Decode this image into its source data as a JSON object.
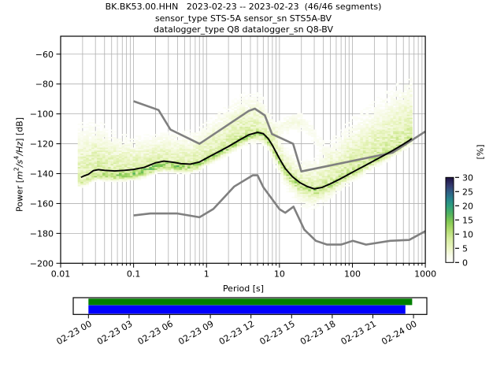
{
  "title": {
    "line1": "BK.BK53.00.HHN   2023-02-23 -- 2023-02-23  (46/46 segments)",
    "line2": "sensor_type STS-5A sensor_sn STS5A-BV",
    "line3": "datalogger_type Q8 datalogger_sn Q8-BV"
  },
  "axes": {
    "xlabel": "Period [s]",
    "ylabel_parts": {
      "p0": "Power [",
      "m": "m",
      "mexp": "2",
      "s": "/s",
      "sexp": "4",
      "hz": "/Hz",
      "p1": "] [dB]"
    },
    "xtick_labels": [
      "0.01",
      "0.1",
      "1",
      "10",
      "100",
      "1000"
    ],
    "ytick_labels": [
      "−60",
      "−80",
      "−100",
      "−120",
      "−140",
      "−160",
      "−180",
      "−200"
    ]
  },
  "colors": {
    "grid": "#b0b0b0",
    "spine": "#000000",
    "noise_model": "#808080",
    "mean_line": "#000000",
    "coverage_green": "#007f00",
    "segment_blue": "#0000ff",
    "background": "#ffffff"
  },
  "chart_data": {
    "type": "heatmap",
    "title": "BK.BK53.00.HHN 2023-02-23 -- 2023-02-23 (46/46 segments)",
    "xlabel": "Period [s]",
    "ylabel": "Power [m^2/s^4/Hz] [dB]",
    "xscale": "log",
    "xlim": [
      0.01,
      1000
    ],
    "ylim": [
      -200,
      -48
    ],
    "xticks": [
      0.01,
      0.1,
      1,
      10,
      100,
      1000
    ],
    "yticks": [
      -60,
      -80,
      -100,
      -120,
      -140,
      -160,
      -180,
      -200
    ],
    "grid": true,
    "colorbar": {
      "label": "[%]",
      "ticks": [
        0,
        5,
        10,
        15,
        20,
        25,
        30
      ],
      "tick_labels": [
        "0",
        "5",
        "10",
        "15",
        "20",
        "25",
        "30"
      ],
      "max": 30,
      "stops": [
        [
          0.0,
          "#ffffff"
        ],
        [
          0.08,
          "#f8fbe9"
        ],
        [
          0.17,
          "#eaf5c2"
        ],
        [
          0.28,
          "#d5ec9d"
        ],
        [
          0.38,
          "#b2dc70"
        ],
        [
          0.48,
          "#83c952"
        ],
        [
          0.57,
          "#52b25f"
        ],
        [
          0.66,
          "#2fa07c"
        ],
        [
          0.74,
          "#27858b"
        ],
        [
          0.82,
          "#2e6286"
        ],
        [
          0.9,
          "#343c71"
        ],
        [
          1.0,
          "#1e1040"
        ]
      ]
    },
    "mean_curve": [
      [
        0.019,
        -142.5
      ],
      [
        0.021,
        -141.5
      ],
      [
        0.024,
        -140.5
      ],
      [
        0.028,
        -138.0
      ],
      [
        0.033,
        -137.3
      ],
      [
        0.04,
        -137.8
      ],
      [
        0.055,
        -138.2
      ],
      [
        0.075,
        -137.8
      ],
      [
        0.1,
        -137.2
      ],
      [
        0.14,
        -135.8
      ],
      [
        0.2,
        -132.8
      ],
      [
        0.26,
        -131.6
      ],
      [
        0.35,
        -132.4
      ],
      [
        0.45,
        -133.3
      ],
      [
        0.6,
        -133.6
      ],
      [
        0.8,
        -132.2
      ],
      [
        1.0,
        -129.6
      ],
      [
        1.4,
        -125.8
      ],
      [
        2.0,
        -121.8
      ],
      [
        2.8,
        -117.6
      ],
      [
        3.8,
        -114.0
      ],
      [
        5.0,
        -112.4
      ],
      [
        6.0,
        -113.2
      ],
      [
        7.0,
        -116.5
      ],
      [
        8.0,
        -121.0
      ],
      [
        10,
        -130.0
      ],
      [
        12,
        -136.5
      ],
      [
        15,
        -142.0
      ],
      [
        19,
        -146.0
      ],
      [
        24,
        -148.6
      ],
      [
        30,
        -150.2
      ],
      [
        38,
        -149.3
      ],
      [
        50,
        -146.8
      ],
      [
        65,
        -144.0
      ],
      [
        85,
        -141.0
      ],
      [
        110,
        -138.0
      ],
      [
        150,
        -134.5
      ],
      [
        200,
        -131.2
      ],
      [
        270,
        -127.8
      ],
      [
        360,
        -124.4
      ],
      [
        480,
        -120.8
      ],
      [
        600,
        -117.8
      ],
      [
        650,
        -116.5
      ]
    ],
    "nhnm": [
      [
        0.1,
        -91.5
      ],
      [
        0.22,
        -97.4
      ],
      [
        0.32,
        -110.5
      ],
      [
        0.8,
        -120.0
      ],
      [
        3.8,
        -98.0
      ],
      [
        4.6,
        -96.5
      ],
      [
        6.3,
        -101.0
      ],
      [
        7.9,
        -113.5
      ],
      [
        15.4,
        -120.0
      ],
      [
        20,
        -138.5
      ],
      [
        354.8,
        -126.0
      ],
      [
        1000,
        -111.8
      ]
    ],
    "nlnm": [
      [
        0.1,
        -168.0
      ],
      [
        0.17,
        -166.7
      ],
      [
        0.4,
        -166.7
      ],
      [
        0.8,
        -169.2
      ],
      [
        1.24,
        -163.7
      ],
      [
        2.4,
        -148.6
      ],
      [
        4.3,
        -141.1
      ],
      [
        5.0,
        -141.1
      ],
      [
        6.0,
        -149.0
      ],
      [
        10,
        -163.8
      ],
      [
        12,
        -166.2
      ],
      [
        15.6,
        -162.1
      ],
      [
        21.9,
        -177.5
      ],
      [
        31.6,
        -185.0
      ],
      [
        45,
        -187.5
      ],
      [
        70,
        -187.5
      ],
      [
        101,
        -185.0
      ],
      [
        154,
        -187.5
      ],
      [
        328,
        -185.0
      ],
      [
        600,
        -184.4
      ],
      [
        1000,
        -178.5
      ]
    ],
    "ghost_curve": [
      [
        7,
        -116
      ],
      [
        9,
        -111
      ],
      [
        12,
        -107.5
      ],
      [
        16,
        -105.3
      ],
      [
        20,
        -105.5
      ],
      [
        26,
        -110
      ],
      [
        33,
        -117
      ],
      [
        42,
        -124
      ],
      [
        55,
        -131
      ],
      [
        70,
        -137
      ]
    ],
    "ghost_amplitude": [
      [
        0.82,
        0
      ],
      [
        0.95,
        1.6
      ],
      [
        1.08,
        2.4
      ],
      [
        1.2,
        2.7
      ],
      [
        1.35,
        2.3
      ],
      [
        1.5,
        1.5
      ],
      [
        1.65,
        0.8
      ],
      [
        1.82,
        0
      ]
    ],
    "band_profile": [
      [
        -1.75,
        -4,
        1.4,
        17,
        5,
        2.5,
        6
      ],
      [
        -1.5,
        -4,
        1.5,
        15,
        6.5,
        3,
        7
      ],
      [
        -1.2,
        -3.5,
        1.8,
        12,
        8.5,
        3.5,
        6
      ],
      [
        -0.8,
        -3,
        2,
        10,
        8.5,
        3.5,
        6
      ],
      [
        -0.4,
        -2.5,
        2,
        10,
        7.5,
        3.5,
        5.5
      ],
      [
        0,
        -1.5,
        1.6,
        12,
        5.5,
        3,
        6
      ],
      [
        0.45,
        -1,
        1.5,
        14,
        4.5,
        3,
        7
      ],
      [
        0.7,
        -1,
        1.6,
        13,
        4.5,
        3.5,
        6
      ],
      [
        0.9,
        -1.5,
        2,
        10,
        5,
        5,
        5
      ],
      [
        1.1,
        -2,
        2.5,
        8,
        5,
        7,
        5
      ],
      [
        1.35,
        -2,
        2.5,
        9,
        5,
        8,
        5
      ],
      [
        1.6,
        -1,
        2,
        12,
        4,
        6,
        6
      ],
      [
        1.9,
        0,
        1.5,
        16,
        3,
        3.5,
        7
      ],
      [
        2.2,
        0,
        1.3,
        18,
        2.8,
        2.8,
        7
      ],
      [
        2.85,
        0,
        1.2,
        20,
        2.5,
        2.5,
        7
      ]
    ],
    "period_bin_step_log10": 0.0376,
    "period_range": [
      0.018,
      680
    ]
  },
  "timeline": {
    "tick_labels": [
      "02-23 00",
      "02-23 03",
      "02-23 06",
      "02-23 09",
      "02-23 12",
      "02-23 15",
      "02-23 18",
      "02-23 21",
      "02-24 00"
    ],
    "coverage_hours": [
      0,
      23.9
    ],
    "segments_hours": [
      0,
      23.4
    ]
  }
}
